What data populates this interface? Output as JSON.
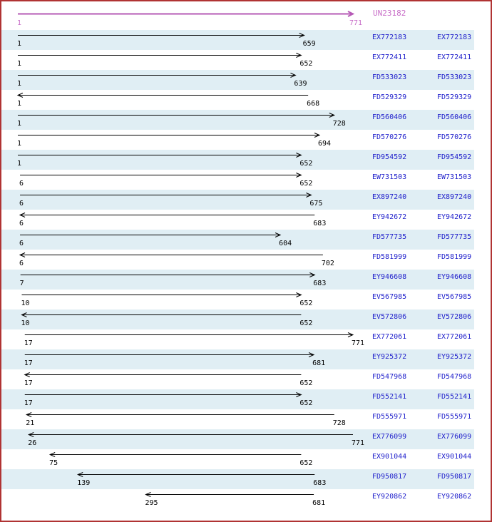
{
  "header": {
    "cluster_id": "UN23182",
    "axis_start": "1",
    "axis_end": "771"
  },
  "colors": {
    "border": "#b03333",
    "stripe": "#e0eef4",
    "accession_link": "#2222cc",
    "read_arrow": "#000000",
    "cluster_arrow": "#b65ab6",
    "cluster_text": "#c86ec8"
  },
  "chart_data": {
    "type": "bar",
    "variant": "horizontal-range-alignment",
    "title": "UN23182",
    "xlabel": "",
    "ylabel": "",
    "axis_range": [
      1,
      771
    ],
    "grid": false,
    "legend": false,
    "rows": [
      {
        "accession": "EX772183",
        "start": 1,
        "end": 659,
        "direction": "right"
      },
      {
        "accession": "EX772411",
        "start": 1,
        "end": 652,
        "direction": "right"
      },
      {
        "accession": "FD533023",
        "start": 1,
        "end": 639,
        "direction": "right"
      },
      {
        "accession": "FD529329",
        "start": 1,
        "end": 668,
        "direction": "left"
      },
      {
        "accession": "FD560406",
        "start": 1,
        "end": 728,
        "direction": "right"
      },
      {
        "accession": "FD570276",
        "start": 1,
        "end": 694,
        "direction": "right"
      },
      {
        "accession": "FD954592",
        "start": 1,
        "end": 652,
        "direction": "right"
      },
      {
        "accession": "EW731503",
        "start": 6,
        "end": 652,
        "direction": "right"
      },
      {
        "accession": "EX897240",
        "start": 6,
        "end": 675,
        "direction": "right"
      },
      {
        "accession": "EY942672",
        "start": 6,
        "end": 683,
        "direction": "left"
      },
      {
        "accession": "FD577735",
        "start": 6,
        "end": 604,
        "direction": "right"
      },
      {
        "accession": "FD581999",
        "start": 6,
        "end": 702,
        "direction": "left"
      },
      {
        "accession": "EY946608",
        "start": 7,
        "end": 683,
        "direction": "right"
      },
      {
        "accession": "EV567985",
        "start": 10,
        "end": 652,
        "direction": "right"
      },
      {
        "accession": "EV572806",
        "start": 10,
        "end": 652,
        "direction": "left"
      },
      {
        "accession": "EX772061",
        "start": 17,
        "end": 771,
        "direction": "right"
      },
      {
        "accession": "EY925372",
        "start": 17,
        "end": 681,
        "direction": "right"
      },
      {
        "accession": "FD547968",
        "start": 17,
        "end": 652,
        "direction": "left"
      },
      {
        "accession": "FD552141",
        "start": 17,
        "end": 652,
        "direction": "right"
      },
      {
        "accession": "FD555971",
        "start": 21,
        "end": 728,
        "direction": "left"
      },
      {
        "accession": "EX776099",
        "start": 26,
        "end": 771,
        "direction": "left"
      },
      {
        "accession": "EX901044",
        "start": 75,
        "end": 652,
        "direction": "left"
      },
      {
        "accession": "FD950817",
        "start": 139,
        "end": 683,
        "direction": "left"
      },
      {
        "accession": "EY920862",
        "start": 295,
        "end": 681,
        "direction": "left"
      }
    ]
  }
}
